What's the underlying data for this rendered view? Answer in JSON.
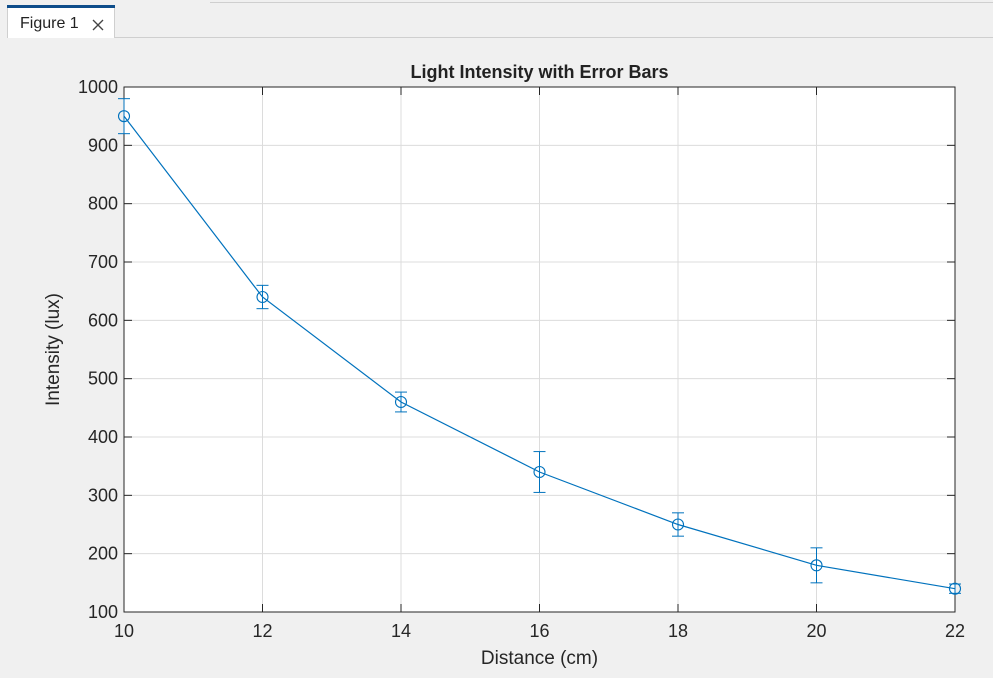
{
  "window": {
    "tab_label": "Figure 1",
    "close_icon": "close-icon"
  },
  "colors": {
    "series": "#0072bd",
    "grid": "#dcdcdc",
    "axes": "#262626",
    "background": "#f0f0f0",
    "tab_accent": "#0e4d8a"
  },
  "chart_data": {
    "type": "line",
    "title": "Light Intensity with Error Bars",
    "xlabel": "Distance (cm)",
    "ylabel": "Intensity (lux)",
    "xlim": [
      10,
      22
    ],
    "ylim": [
      100,
      1000
    ],
    "xticks": [
      10,
      12,
      14,
      16,
      18,
      20,
      22
    ],
    "yticks": [
      100,
      200,
      300,
      400,
      500,
      600,
      700,
      800,
      900,
      1000
    ],
    "grid": true,
    "marker": "circle",
    "series": [
      {
        "x": [
          10,
          12,
          14,
          16,
          18,
          20,
          22
        ],
        "y": [
          950,
          640,
          460,
          340,
          250,
          180,
          140
        ],
        "error": [
          30,
          20,
          17,
          35,
          20,
          30,
          8
        ]
      }
    ]
  }
}
